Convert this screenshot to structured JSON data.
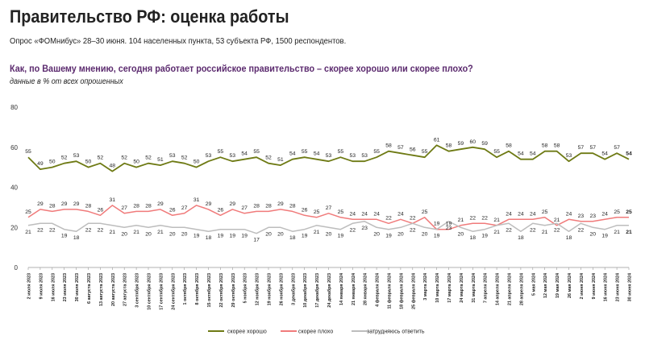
{
  "header": {
    "title": "Правительство РФ: оценка работы",
    "subtitle": "Опрос «ФОМнибус» 28–30 июня. 104 населенных пункта, 53 субъекта РФ, 1500 респондентов.",
    "question": "Как, по Вашему мнению, сегодня работает российское правительство – скорее хорошо или скорее плохо?",
    "unit_note": "данные в % от всех опрошенных"
  },
  "chart_data": {
    "type": "line",
    "title": "",
    "xlabel": "",
    "ylabel": "",
    "ylim": [
      0,
      80
    ],
    "yticks": [
      0,
      20,
      40,
      60,
      80
    ],
    "grid": false,
    "legend_position": "bottom-center",
    "categories": [
      "2 июля 2023",
      "9 июля 2023",
      "16 июля 2023",
      "23 июля 2023",
      "30 июля 2023",
      "6 августа 2023",
      "13 августа 2023",
      "20 августа 2023",
      "27 августа 2023",
      "3 сентября 2023",
      "10 сентября 2023",
      "17 сентября 2023",
      "24 сентября 2023",
      "1 октября 2023",
      "8 октября 2023",
      "15 октября 2023",
      "22 октября 2023",
      "29 октября 2023",
      "5 ноября 2023",
      "12 ноября 2023",
      "19 ноября 2023",
      "26 ноября 2023",
      "3 декабря 2023",
      "10 декабря 2023",
      "17 декабря 2023",
      "24 декабря 2023",
      "14 января 2024",
      "21 января 2024",
      "28 января 2024",
      "4 февраля 2024",
      "11 февраля 2024",
      "18 февраля 2024",
      "25 февраля 2024",
      "3 марта 2024",
      "10 марта 2024",
      "17 марта 2024",
      "24 марта 2024",
      "31 марта 2024",
      "7 апреля 2024",
      "14 апреля 2024",
      "21 апреля 2024",
      "28 апреля 2024",
      "5 мая 2024",
      "12 мая 2024",
      "19 мая 2024",
      "26 мая 2024",
      "2 июня 2024",
      "9 июня 2024",
      "16 июня 2024",
      "23 июня 2024",
      "30 июня 2024"
    ],
    "series": [
      {
        "name": "скорее хорошо",
        "color": "#6e7a14",
        "values": [
          55,
          49,
          50,
          52,
          53,
          50,
          52,
          48,
          52,
          50,
          52,
          51,
          53,
          52,
          50,
          53,
          55,
          53,
          54,
          55,
          52,
          51,
          54,
          55,
          54,
          53,
          55,
          53,
          53,
          55,
          58,
          57,
          56,
          55,
          61,
          58,
          59,
          60,
          59,
          55,
          58,
          54,
          54,
          58,
          58,
          53,
          57,
          57,
          54,
          57,
          54
        ]
      },
      {
        "name": "скорее плохо",
        "color": "#f07b7b",
        "values": [
          25,
          29,
          28,
          29,
          29,
          28,
          26,
          31,
          27,
          28,
          28,
          29,
          26,
          27,
          31,
          29,
          26,
          29,
          27,
          28,
          28,
          29,
          28,
          26,
          25,
          27,
          25,
          24,
          24,
          24,
          22,
          24,
          22,
          25,
          19,
          19,
          21,
          22,
          22,
          21,
          24,
          24,
          24,
          25,
          21,
          24,
          23,
          23,
          24,
          25,
          25
        ]
      },
      {
        "name": "затрудняюсь ответить",
        "color": "#bdbdbd",
        "values": [
          21,
          22,
          22,
          19,
          18,
          22,
          22,
          21,
          20,
          21,
          20,
          21,
          20,
          20,
          19,
          18,
          19,
          19,
          19,
          17,
          20,
          20,
          18,
          19,
          21,
          20,
          19,
          22,
          23,
          20,
          19,
          20,
          22,
          20,
          19,
          23,
          20,
          18,
          19,
          21,
          22,
          18,
          22,
          21,
          22,
          18,
          22,
          20,
          19,
          21,
          21
        ]
      }
    ]
  }
}
